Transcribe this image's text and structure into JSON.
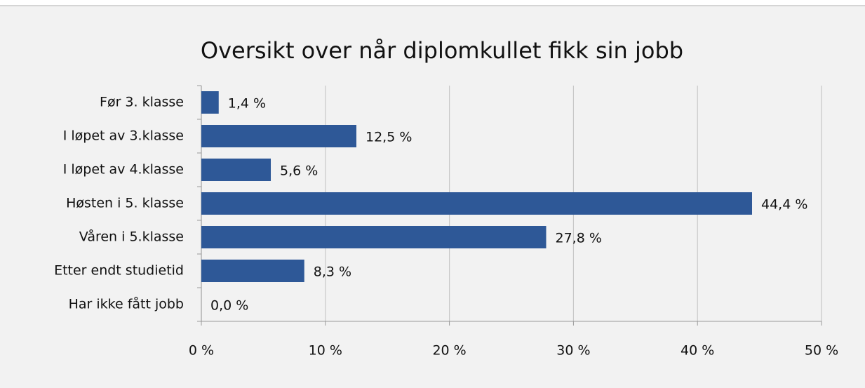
{
  "chart_data": {
    "type": "bar",
    "orientation": "horizontal",
    "title": "Oversikt over når diplomkullet fikk sin jobb",
    "categories": [
      "Før 3. klasse",
      "I løpet av 3.klasse",
      "I løpet av 4.klasse",
      "Høsten i 5. klasse",
      "Våren i 5.klasse",
      "Etter endt studietid",
      "Har ikke fått jobb"
    ],
    "values": [
      1.4,
      12.5,
      5.6,
      44.4,
      27.8,
      8.3,
      0.0
    ],
    "value_labels": [
      "1,4 %",
      "12,5 %",
      "5,6 %",
      "44,4 %",
      "27,8 %",
      "8,3 %",
      "0,0 %"
    ],
    "color": "#2e5897",
    "xlim": [
      0,
      50
    ],
    "xticks": [
      {
        "value": 0,
        "label": "0 %"
      },
      {
        "value": 10,
        "label": "10 %"
      },
      {
        "value": 20,
        "label": "20 %"
      },
      {
        "value": 30,
        "label": "30 %"
      },
      {
        "value": 40,
        "label": "40 %"
      },
      {
        "value": 50,
        "label": "50 %"
      }
    ],
    "grid": true
  }
}
